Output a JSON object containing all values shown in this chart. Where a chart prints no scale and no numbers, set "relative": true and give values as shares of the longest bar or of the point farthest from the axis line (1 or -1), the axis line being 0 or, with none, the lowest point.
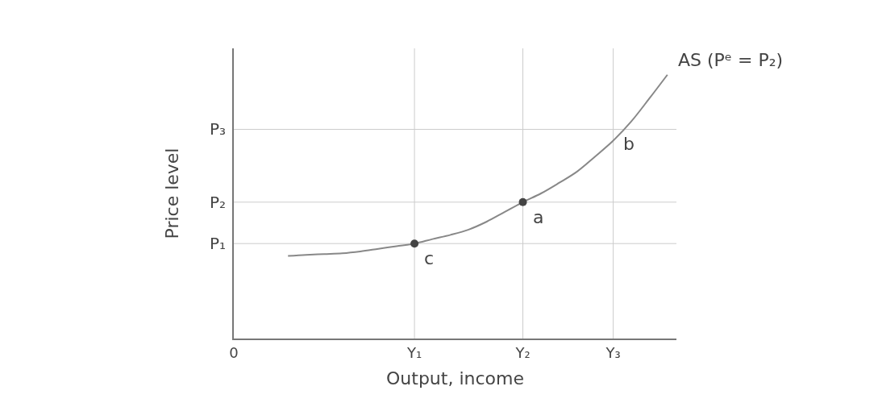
{
  "chart_data": {
    "type": "line",
    "relative": true,
    "xlabel": "Output, income",
    "ylabel": "Price level",
    "categories": [
      "0",
      null,
      null,
      null,
      null,
      null,
      null,
      null,
      null,
      null,
      "Y₁",
      null,
      null,
      null,
      null,
      null,
      "Y₂",
      null,
      null,
      null,
      null,
      "Y₃",
      null,
      null,
      null
    ],
    "series": [
      {
        "color": "#888888",
        "values": [
          null,
          null,
          null,
          0.313,
          0.317,
          0.32,
          0.323,
          0.33,
          0.34,
          0.35,
          0.36,
          0.377,
          0.393,
          0.413,
          0.443,
          0.48,
          0.517,
          0.55,
          0.59,
          0.633,
          0.69,
          0.75,
          0.823,
          0.91,
          1.0
        ]
      },
      {
        "type": "scatter",
        "color": "#444444",
        "marker": "circle",
        "values": [
          null,
          null,
          null,
          null,
          null,
          null,
          null,
          null,
          null,
          null,
          0.36,
          null,
          null,
          null,
          null,
          null,
          0.517,
          null,
          null,
          null,
          null,
          null,
          null,
          null,
          null
        ]
      }
    ],
    "ref_lines": [
      {
        "axis": "y",
        "value": 0.36,
        "label": "P₁",
        "color": "#cccccc"
      },
      {
        "axis": "y",
        "value": 0.517,
        "label": "P₂",
        "color": "#cccccc"
      },
      {
        "axis": "y",
        "value": 0.793,
        "label": "P₃",
        "color": "#cccccc"
      },
      {
        "axis": "x",
        "value": "Y₁",
        "color": "#cccccc"
      },
      {
        "axis": "x",
        "value": "Y₂",
        "color": "#cccccc"
      },
      {
        "axis": "x",
        "value": "Y₃",
        "color": "#cccccc"
      }
    ],
    "annotations": [
      {
        "text": "a",
        "x": "Y₂",
        "y": 0.517
      },
      {
        "text": "b",
        "x": "Y₃",
        "y": 0.793
      },
      {
        "text": "c",
        "x": "Y₁",
        "y": 0.36
      },
      "AS (Pᵉ = P₂)"
    ],
    "grid": false
  }
}
